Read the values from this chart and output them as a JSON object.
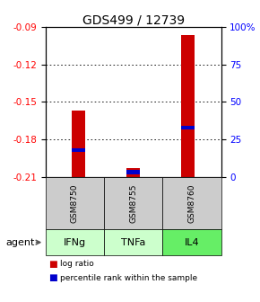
{
  "title": "GDS499 / 12739",
  "samples": [
    "GSM8750",
    "GSM8755",
    "GSM8760"
  ],
  "agents": [
    "IFNg",
    "TNFa",
    "IL4"
  ],
  "log_ratios": [
    -0.157,
    -0.203,
    -0.096
  ],
  "percentile_ranks": [
    18,
    3,
    33
  ],
  "ymin": -0.21,
  "ymax": -0.09,
  "yticks_left": [
    -0.21,
    -0.18,
    -0.15,
    -0.12,
    -0.09
  ],
  "yticks_right": [
    0,
    25,
    50,
    75,
    100
  ],
  "bar_color": "#cc0000",
  "percentile_color": "#0000cc",
  "bar_width": 0.25,
  "agent_colors": {
    "IFNg": "#ccffcc",
    "TNFa": "#ccffcc",
    "IL4": "#66ee66"
  },
  "sample_bg": "#cccccc",
  "title_fontsize": 10,
  "tick_fontsize": 7.5,
  "label_fontsize": 8
}
